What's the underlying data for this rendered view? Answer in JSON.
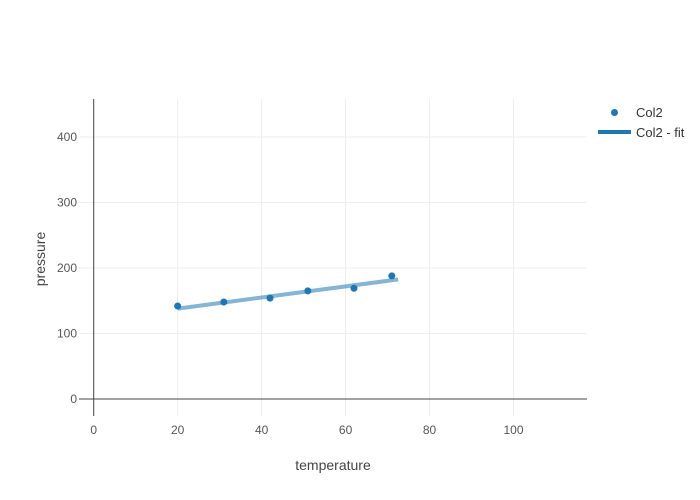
{
  "chart_data": {
    "type": "scatter",
    "title": "",
    "xlabel": "temperature",
    "ylabel": "pressure",
    "xlim": [
      -3.5,
      117.5
    ],
    "ylim": [
      -26,
      458
    ],
    "x_ticks": [
      0,
      20,
      40,
      60,
      80,
      100
    ],
    "y_ticks": [
      0,
      100,
      200,
      300,
      400
    ],
    "grid": true,
    "legend_position": "top-right",
    "series": [
      {
        "name": "Col2",
        "mode": "markers",
        "x": [
          20,
          31,
          42,
          51,
          62,
          71
        ],
        "y": [
          142,
          148,
          154,
          165,
          169,
          188
        ],
        "color": "#1f77b4",
        "marker_size": 7
      },
      {
        "name": "Col2 - fit",
        "mode": "line",
        "x": [
          20,
          72.5
        ],
        "y": [
          138,
          182.5
        ],
        "color": "#1f77b4",
        "opacity": 0.55,
        "line_width": 4
      }
    ]
  },
  "legend": {
    "items": [
      {
        "label": "Col2",
        "swatch": "dot"
      },
      {
        "label": "Col2 - fit",
        "swatch": "line"
      }
    ]
  },
  "colors": {
    "accent": "#1f77b4",
    "grid": "#ededed",
    "zeroline": "#444444",
    "tick_text": "#555555",
    "axis_title": "#444444",
    "background": "#ffffff"
  }
}
